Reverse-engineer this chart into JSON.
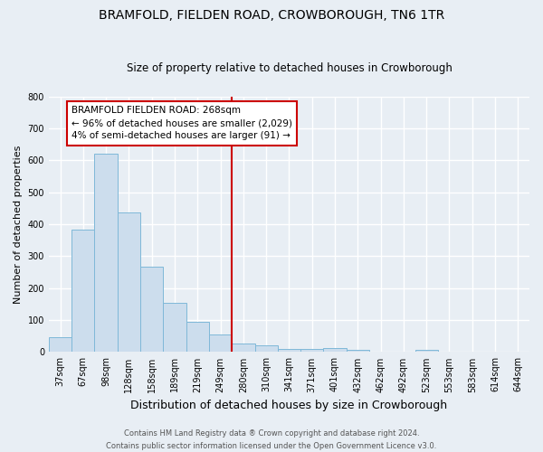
{
  "title": "BRAMFOLD, FIELDEN ROAD, CROWBOROUGH, TN6 1TR",
  "subtitle": "Size of property relative to detached houses in Crowborough",
  "xlabel": "Distribution of detached houses by size in Crowborough",
  "ylabel": "Number of detached properties",
  "footer_line1": "Contains HM Land Registry data ® Crown copyright and database right 2024.",
  "footer_line2": "Contains public sector information licensed under the Open Government Licence v3.0.",
  "categories": [
    "37sqm",
    "67sqm",
    "98sqm",
    "128sqm",
    "158sqm",
    "189sqm",
    "219sqm",
    "249sqm",
    "280sqm",
    "310sqm",
    "341sqm",
    "371sqm",
    "401sqm",
    "432sqm",
    "462sqm",
    "492sqm",
    "523sqm",
    "553sqm",
    "583sqm",
    "614sqm",
    "644sqm"
  ],
  "values": [
    46,
    383,
    621,
    437,
    267,
    154,
    96,
    55,
    28,
    20,
    11,
    11,
    12,
    7,
    0,
    0,
    8,
    0,
    0,
    0,
    0
  ],
  "bar_color": "#ccdded",
  "bar_edge_color": "#7fb8d8",
  "vline_color": "#cc0000",
  "annotation_title": "BRAMFOLD FIELDEN ROAD: 268sqm",
  "annotation_line1": "← 96% of detached houses are smaller (2,029)",
  "annotation_line2": "4% of semi-detached houses are larger (91) →",
  "annotation_box_facecolor": "white",
  "annotation_box_edgecolor": "#cc0000",
  "ylim": [
    0,
    800
  ],
  "yticks": [
    0,
    100,
    200,
    300,
    400,
    500,
    600,
    700,
    800
  ],
  "bg_color": "#e8eef4",
  "grid_color": "white",
  "title_fontsize": 10,
  "subtitle_fontsize": 8.5,
  "ylabel_fontsize": 8,
  "xlabel_fontsize": 9,
  "tick_fontsize": 7,
  "footer_fontsize": 6,
  "annotation_fontsize": 7.5,
  "vline_xindex": 8
}
